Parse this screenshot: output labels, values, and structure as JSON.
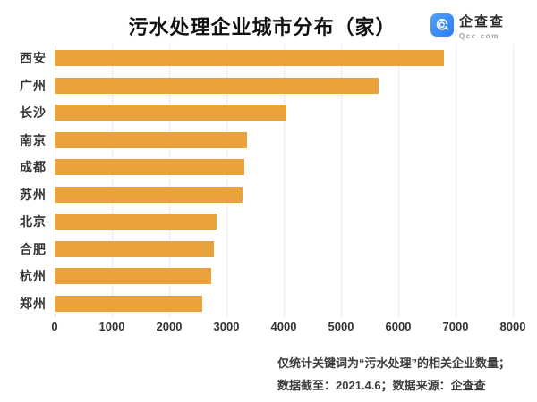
{
  "title": "污水处理企业城市分布（家）",
  "logo": {
    "name": "企查查",
    "domain": "Qcc.com",
    "brand_color": "#3A8BF8"
  },
  "chart_data": {
    "type": "bar",
    "orientation": "horizontal",
    "title": "污水处理企业城市分布（家）",
    "categories": [
      "西安",
      "广州",
      "长沙",
      "南京",
      "成都",
      "苏州",
      "北京",
      "合肥",
      "杭州",
      "郑州"
    ],
    "values": [
      6800,
      5650,
      4050,
      3360,
      3310,
      3280,
      2830,
      2780,
      2730,
      2580
    ],
    "xlabel": "",
    "ylabel": "",
    "xlim": [
      0,
      8000
    ],
    "xticks": [
      0,
      1000,
      2000,
      3000,
      4000,
      5000,
      6000,
      7000,
      8000
    ],
    "bar_color": "#E9A23C",
    "grid": true,
    "legend": false
  },
  "footer": {
    "line1": "仅统计关键词为“污水处理”的相关企业数量；",
    "line2": "数据截至：2021.4.6；数据来源：企查查"
  }
}
